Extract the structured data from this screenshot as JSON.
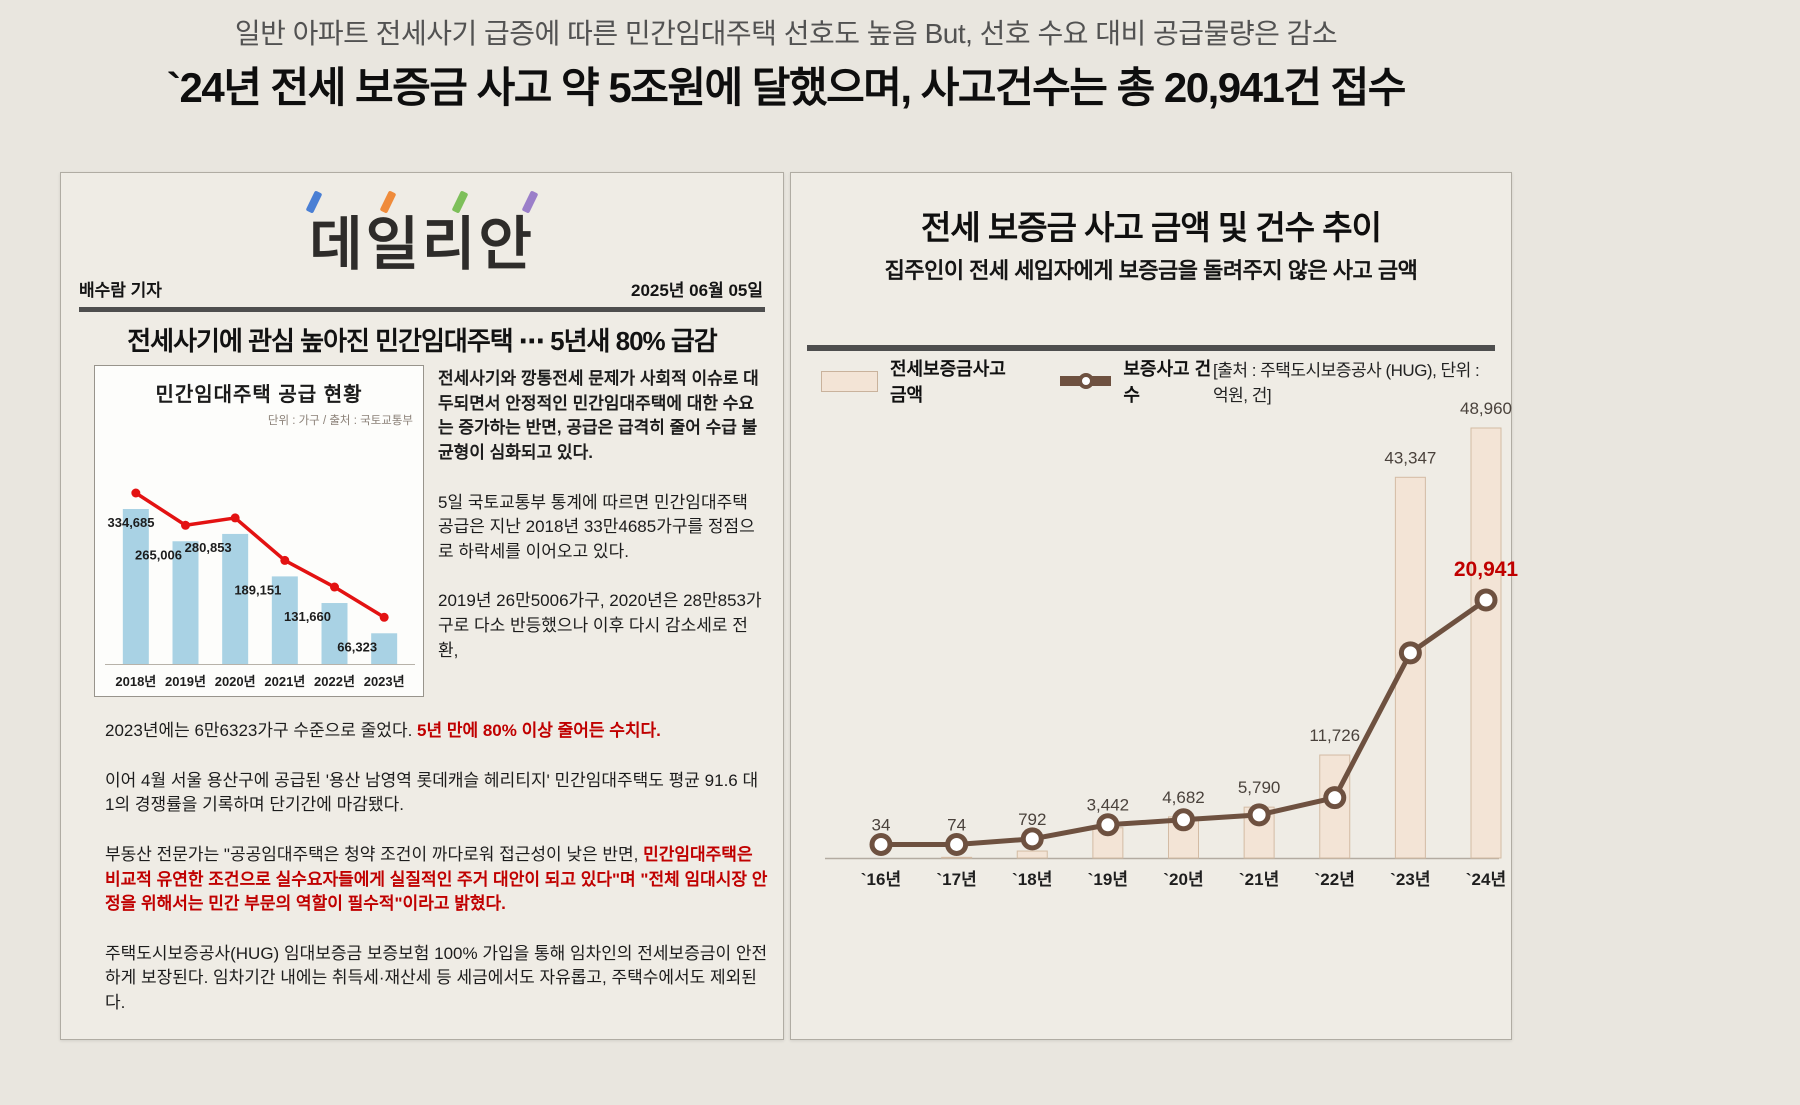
{
  "page": {
    "kicker": "일반 아파트 전세사기 급증에 따른 민간임대주택 선호도 높음 But, 선호 수요 대비 공급물량은 감소",
    "headline": "`24년 전세 보증금 사고 약 5조원에 달했으며, 사고건수는 총 20,941건 접수"
  },
  "article": {
    "logo": "데일리안",
    "reporter": "배수람 기자",
    "date": "2025년 06월 05일",
    "headline": "전세사기에 관심 높아진 민간임대주택 ⋯ 5년새 80% 급감",
    "p1": "전세사기와 깡통전세 문제가 사회적 이슈로 대두되면서 안정적인 민간임대주택에 대한 수요는 증가하는 반면, 공급은 급격히 줄어 수급 불균형이 심화되고 있다.",
    "p2": "5일 국토교통부 통계에 따르면 민간임대주택 공급은 지난 2018년 33만4685가구를 정점으로 하락세를 이어오고 있다.",
    "p3": "2019년 26만5006가구, 2020년은 28만853가구로 다소 반등했으나 이후 다시 감소세로 전환,",
    "p4a": "2023년에는 6만6323가구 수준으로 줄었다. ",
    "p4b": "5년 만에 80% 이상 줄어든 수치다.",
    "p5": "이어 4월 서울 용산구에 공급된 '용산 남영역 롯데캐슬 헤리티지' 민간임대주택도 평균 91.6 대 1의 경쟁률을 기록하며 단기간에 마감됐다.",
    "p6a": "부동산 전문가는 \"공공임대주택은 청약 조건이 까다로워 접근성이 낮은 반면, ",
    "p6b": "민간임대주택은 비교적 유연한 조건으로 실수요자들에게 실질적인 주거 대안이 되고 있다\"며 \"전체 임대시장 안정을 위해서는 민간 부문의 역할이 필수적\"이라고 밝혔다.",
    "p7": "주택도시보증공사(HUG) 임대보증금 보증보험 100% 가입을 통해 임차인의 전세보증금이 안전하게 보장된다. 임차기간 내에는 취득세·재산세 등 세금에서도 자유롭고, 주택수에서도 제외된다."
  },
  "chart_data": [
    {
      "id": "supply",
      "type": "bar",
      "title": "민간임대주택 공급 현황",
      "note": "단위 : 가구 / 출처 : 국토교통부",
      "categories": [
        "2018년",
        "2019년",
        "2020년",
        "2021년",
        "2022년",
        "2023년"
      ],
      "series": [
        {
          "name": "민간임대주택 공급(가구)",
          "type": "bar",
          "color": "#a9d2e4",
          "values": [
            334685,
            265006,
            280853,
            189151,
            131660,
            66323
          ],
          "labels": [
            "334,685",
            "265,006",
            "280,853",
            "189,151",
            "131,660",
            "66,323"
          ]
        },
        {
          "name": "추세선",
          "type": "line",
          "color": "#e31212"
        }
      ],
      "ylim": [
        0,
        360000
      ],
      "grid": false,
      "legend_position": "none"
    },
    {
      "id": "accidents",
      "type": "bar",
      "title": "전세 보증금 사고 금액 및 건수 추이",
      "subtitle": "집주인이 전세 세입자에게 보증금을 돌려주지 않은 사고 금액",
      "source": "[출처 : 주택도시보증공사 (HUG), 단위 : 억원, 건]",
      "categories": [
        "`16년",
        "`17년",
        "`18년",
        "`19년",
        "`20년",
        "`21년",
        "`22년",
        "`23년",
        "`24년"
      ],
      "series": [
        {
          "name": "전세보증금사고금액",
          "type": "bar",
          "unit": "억원",
          "color": "#f3e4d6",
          "stroke": "#d3bba4",
          "values": [
            34,
            74,
            792,
            3442,
            4682,
            5790,
            11726,
            43347,
            48960
          ],
          "labels": [
            "34",
            "74",
            "792",
            "3,442",
            "4,682",
            "5,790",
            "11,726",
            "43,347",
            "48,960"
          ]
        },
        {
          "name": "보증사고 건수",
          "type": "line",
          "unit": "건",
          "color": "#6e5140",
          "values_estimated": [
            1100,
            1100,
            1550,
            2700,
            3100,
            3500,
            4900,
            16650,
            20941
          ],
          "labeled_point": {
            "index": 8,
            "value": 20941,
            "label": "20,941",
            "color": "#c00000"
          }
        }
      ],
      "bar_ylim": [
        0,
        52000
      ],
      "line_ylim": [
        0,
        21000
      ],
      "grid": false,
      "legend_position": "top-left"
    }
  ]
}
